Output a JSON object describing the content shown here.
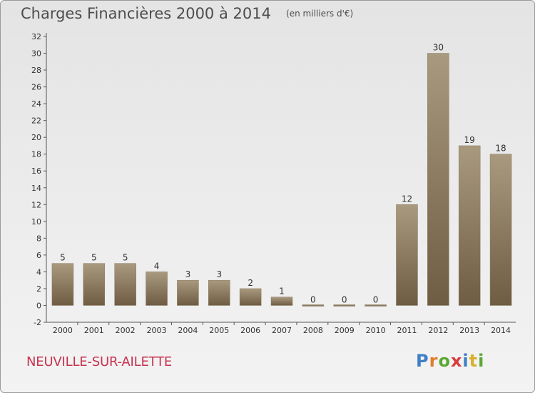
{
  "header": {
    "title": "Charges Financières 2000 à 2014",
    "subtitle": "(en milliers d'€)"
  },
  "footer": {
    "commune": "NEUVILLE-SUR-AILETTE",
    "brand": "Proxiti"
  },
  "colors": {
    "bar_top": "#a99a7f",
    "bar_bottom": "#6e5c43",
    "title": "#4d4d4d",
    "commune": "#c8324f"
  },
  "chart_data": {
    "type": "bar",
    "categories": [
      "2000",
      "2001",
      "2002",
      "2003",
      "2004",
      "2005",
      "2006",
      "2007",
      "2008",
      "2009",
      "2010",
      "2011",
      "2012",
      "2013",
      "2014"
    ],
    "values": [
      5,
      5,
      5,
      4,
      3,
      3,
      2,
      1,
      0,
      0,
      0,
      12,
      30,
      19,
      18
    ],
    "title": "Charges Financières 2000 à 2014",
    "subtitle": "(en milliers d'€)",
    "xlabel": "",
    "ylabel": "",
    "ylim": [
      -2,
      32
    ],
    "yticks": [
      -2,
      0,
      2,
      4,
      6,
      8,
      10,
      12,
      14,
      16,
      18,
      20,
      22,
      24,
      26,
      28,
      30,
      32
    ],
    "grid": false,
    "data_labels": true
  }
}
